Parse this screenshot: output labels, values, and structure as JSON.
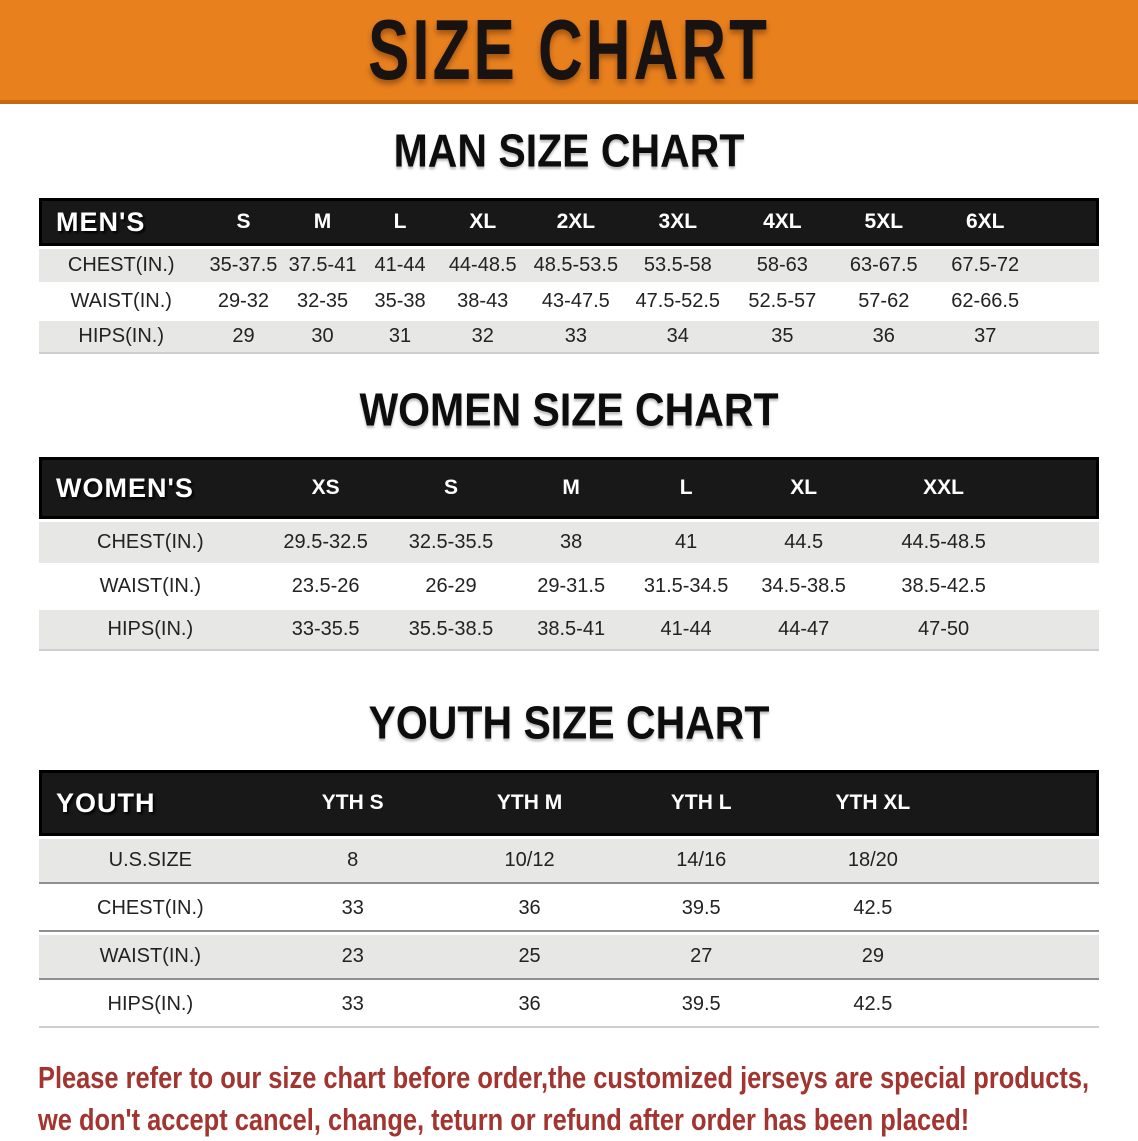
{
  "banner": {
    "title": "SIZE CHART",
    "bg_color": "#e8801e",
    "text_color": "#181210"
  },
  "men": {
    "title": "MAN SIZE CHART",
    "table": {
      "header_label": "MEN'S",
      "columns": [
        "S",
        "M",
        "L",
        "XL",
        "2XL",
        "3XL",
        "4XL",
        "5XL",
        "6XL"
      ],
      "rows": [
        {
          "label": "CHEST(IN.)",
          "values": [
            "35-37.5",
            "37.5-41",
            "41-44",
            "44-48.5",
            "48.5-53.5",
            "53.5-58",
            "58-63",
            "63-67.5",
            "67.5-72"
          ]
        },
        {
          "label": "WAIST(IN.)",
          "values": [
            "29-32",
            "32-35",
            "35-38",
            "38-43",
            "43-47.5",
            "47.5-52.5",
            "52.5-57",
            "57-62",
            "62-66.5"
          ]
        },
        {
          "label": "HIPS(IN.)",
          "values": [
            "29",
            "30",
            "31",
            "32",
            "33",
            "34",
            "35",
            "36",
            "37"
          ]
        }
      ]
    }
  },
  "women": {
    "title": "WOMEN SIZE CHART",
    "table": {
      "header_label": "WOMEN'S",
      "columns": [
        "XS",
        "S",
        "M",
        "L",
        "XL",
        "XXL"
      ],
      "rows": [
        {
          "label": "CHEST(IN.)",
          "values": [
            "29.5-32.5",
            "32.5-35.5",
            "38",
            "41",
            "44.5",
            "44.5-48.5"
          ]
        },
        {
          "label": "WAIST(IN.)",
          "values": [
            "23.5-26",
            "26-29",
            "29-31.5",
            "31.5-34.5",
            "34.5-38.5",
            "38.5-42.5"
          ]
        },
        {
          "label": "HIPS(IN.)",
          "values": [
            "33-35.5",
            "35.5-38.5",
            "38.5-41",
            "41-44",
            "44-47",
            "47-50"
          ]
        }
      ]
    }
  },
  "youth": {
    "title": "YOUTH SIZE CHART",
    "table": {
      "header_label": "YOUTH",
      "columns": [
        "YTH S",
        "YTH M",
        "YTH L",
        "YTH XL"
      ],
      "rows": [
        {
          "label": "U.S.SIZE",
          "values": [
            "8",
            "10/12",
            "14/16",
            "18/20"
          ]
        },
        {
          "label": "CHEST(IN.)",
          "values": [
            "33",
            "36",
            "39.5",
            "42.5"
          ]
        },
        {
          "label": "WAIST(IN.)",
          "values": [
            "23",
            "25",
            "27",
            "29"
          ]
        },
        {
          "label": "HIPS(IN.)",
          "values": [
            "33",
            "36",
            "39.5",
            "42.5"
          ]
        }
      ]
    }
  },
  "disclaimer": {
    "line1": "Please refer to our size chart before order,the customized jerseys are special products,",
    "line2": "we don't accept cancel, change, teturn or refund after order has been placed!",
    "color": "#a23530"
  }
}
